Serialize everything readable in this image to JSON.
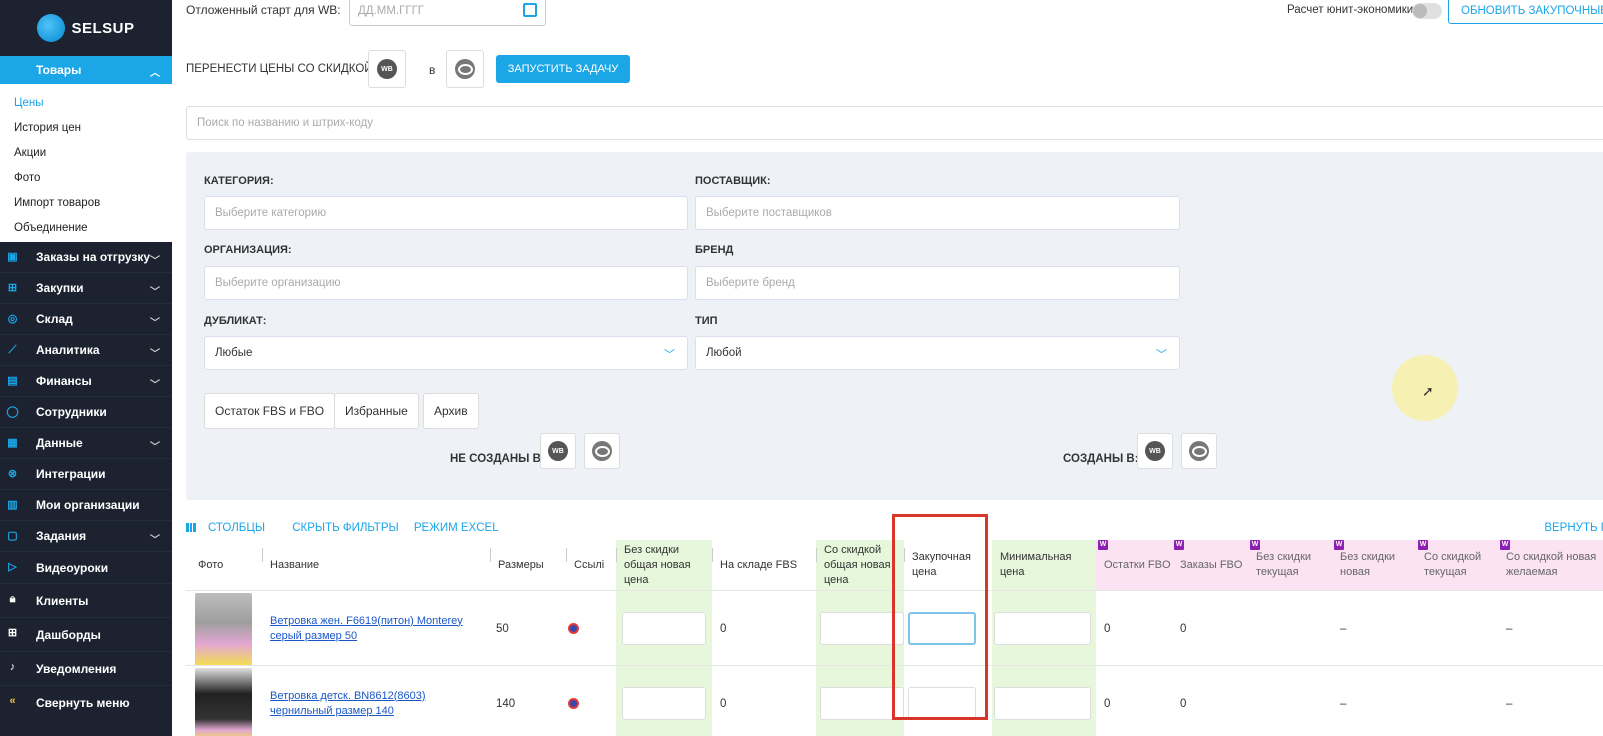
{
  "sidebar": {
    "logo_text": "SELSUP",
    "active_section": "Товары",
    "sub_items": [
      "Цены",
      "История цен",
      "Акции",
      "Фото",
      "Импорт товаров",
      "Объединение"
    ],
    "items": [
      {
        "label": "Заказы на отгрузку",
        "icon": "box-icon"
      },
      {
        "label": "Закупки",
        "icon": "cart-icon"
      },
      {
        "label": "Склад",
        "icon": "check-circle-icon"
      },
      {
        "label": "Аналитика",
        "icon": "chart-icon"
      },
      {
        "label": "Финансы",
        "icon": "wallet-icon"
      },
      {
        "label": "Сотрудники",
        "icon": "user-icon"
      },
      {
        "label": "Данные",
        "icon": "database-icon"
      },
      {
        "label": "Интеграции",
        "icon": "plug-icon"
      },
      {
        "label": "Мои организации",
        "icon": "building-icon"
      },
      {
        "label": "Задания",
        "icon": "task-icon"
      },
      {
        "label": "Видеоуроки",
        "icon": "video-icon"
      },
      {
        "label": "Клиенты",
        "icon": "lock-icon"
      },
      {
        "label": "Дашборды",
        "icon": "grid-icon"
      },
      {
        "label": "Уведомления",
        "icon": "bell-icon"
      },
      {
        "label": "Свернуть меню",
        "icon": "collapse-icon"
      }
    ]
  },
  "top": {
    "delayed_start_label": "Отложенный старт для WB:",
    "date_placeholder": "ДД.ММ.ГГГГ",
    "unit_econ_label": "Расчет юнит-экономики",
    "update_button": "ОБНОВИТЬ ЗАКУПОЧНЫЕ",
    "transfer_label": "ПЕРЕНЕСТИ ЦЕНЫ СО СКИДКОЙ С",
    "wb_text": "WB",
    "in_label": "в",
    "run_button": "ЗАПУСТИТЬ ЗАДАЧУ"
  },
  "search": {
    "placeholder": "Поиск по названию и штрих-коду"
  },
  "filters": {
    "category_label": "КАТЕГОРИЯ:",
    "category_placeholder": "Выберите категорию",
    "supplier_label": "ПОСТАВЩИК:",
    "supplier_placeholder": "Выберите поставщиков",
    "org_label": "ОРГАНИЗАЦИЯ:",
    "org_placeholder": "Выберите организацию",
    "brand_label": "БРЕНД",
    "brand_placeholder": "Выберите бренд",
    "duplicate_label": "ДУБЛИКАТ:",
    "duplicate_value": "Любые",
    "type_label": "ТИП",
    "type_value": "Любой",
    "chips": [
      "Остаток FBS и FBO",
      "Избранные",
      "Архив"
    ],
    "not_created_label": "НЕ СОЗДАНЫ В:",
    "created_label": "СОЗДАНЫ В:"
  },
  "table": {
    "tools": [
      "СТОЛБЦЫ",
      "СКРЫТЬ ФИЛЬТРЫ",
      "РЕЖИМ EXCEL"
    ],
    "return_link": "ВЕРНУТЬ П",
    "headers": {
      "photo": "Фото",
      "name": "Название",
      "sizes": "Размеры",
      "link": "Ссылі",
      "no_discount_new": "Без скидки общая новая цена",
      "fbs_stock": "На складе FBS",
      "discount_new": "Со скидкой общая новая цена",
      "purchase": "Закупочная цена",
      "minimal": "Минимальная цена",
      "fbo_stock": "Остатки FBO",
      "fbo_orders": "Заказы FBO",
      "no_discount_current": "Без скидки текущая",
      "no_discount_new2": "Без скидки новая",
      "discount_current": "Со скидкой текущая",
      "discount_desired": "Со скидкой новая желаемая"
    },
    "rows": [
      {
        "name": "Ветровка жен. F6619(питон) Monterey серый размер 50",
        "size": "50",
        "fbs": "0",
        "fbo_stock": "0",
        "fbo_orders": "0",
        "nd_new": "–",
        "d_desired": "–"
      },
      {
        "name": "Ветровка детск. BN8612(8603) чернильный размер 140",
        "size": "140",
        "fbs": "0",
        "fbo_stock": "0",
        "fbo_orders": "0",
        "nd_new": "–",
        "d_desired": "–"
      }
    ]
  },
  "colors": {
    "accent": "#1ba6e8",
    "sidebar": "#1c2230",
    "highlight": "#d9362b"
  }
}
